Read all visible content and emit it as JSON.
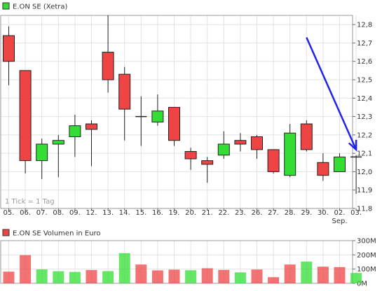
{
  "chart_data": [
    {
      "type": "candlestick",
      "legend": {
        "label": "E.ON SE (Xetra)",
        "color": "#33dd33"
      },
      "footnote": "1 Tick = 1 Tag",
      "x_labels": [
        "05.",
        "06.",
        "07.",
        "08.",
        "09.",
        "12.",
        "13.",
        "14.",
        "15.",
        "16.",
        "19.",
        "20.",
        "21.",
        "22.",
        "23.",
        "26.",
        "27.",
        "28.",
        "29.",
        "30.",
        "02.",
        "03."
      ],
      "x_sublabel": {
        "under": "02.",
        "text": "Sep."
      },
      "y_ticks": [
        12.8,
        12.7,
        12.6,
        12.5,
        12.4,
        12.3,
        12.2,
        12.1,
        12.0,
        11.9,
        11.8
      ],
      "y_tick_labels": [
        "12,8",
        "12,7",
        "12,6",
        "12,5",
        "12,4",
        "12,3",
        "12,2",
        "12,1",
        "12,0",
        "11,9",
        "11,8"
      ],
      "ylim": [
        11.8,
        12.85
      ],
      "grid": true,
      "colors": {
        "up": "#33dd33",
        "down": "#ee4444",
        "annotation": "#2222ee"
      },
      "candles": [
        {
          "open": 12.74,
          "close": 12.6,
          "high": 12.79,
          "low": 12.47
        },
        {
          "open": 12.55,
          "close": 12.06,
          "high": 12.55,
          "low": 11.99
        },
        {
          "open": 12.06,
          "close": 12.15,
          "high": 12.18,
          "low": 11.96
        },
        {
          "open": 12.15,
          "close": 12.17,
          "high": 12.2,
          "low": 11.97
        },
        {
          "open": 12.19,
          "close": 12.25,
          "high": 12.31,
          "low": 12.08
        },
        {
          "open": 12.26,
          "close": 12.23,
          "high": 12.28,
          "low": 12.03
        },
        {
          "open": 12.65,
          "close": 12.5,
          "high": 12.85,
          "low": 12.43
        },
        {
          "open": 12.53,
          "close": 12.34,
          "high": 12.57,
          "low": 12.17
        },
        {
          "open": 12.3,
          "close": 12.3,
          "high": 12.41,
          "low": 12.14
        },
        {
          "open": 12.27,
          "close": 12.33,
          "high": 12.42,
          "low": 12.25
        },
        {
          "open": 12.35,
          "close": 12.17,
          "high": 12.35,
          "low": 12.14
        },
        {
          "open": 12.11,
          "close": 12.07,
          "high": 12.13,
          "low": 12.01
        },
        {
          "open": 12.06,
          "close": 12.04,
          "high": 12.08,
          "low": 11.94
        },
        {
          "open": 12.09,
          "close": 12.15,
          "high": 12.22,
          "low": 12.07
        },
        {
          "open": 12.17,
          "close": 12.15,
          "high": 12.21,
          "low": 12.11
        },
        {
          "open": 12.19,
          "close": 12.12,
          "high": 12.2,
          "low": 12.07
        },
        {
          "open": 12.12,
          "close": 12.0,
          "high": 12.12,
          "low": 11.99
        },
        {
          "open": 11.98,
          "close": 12.21,
          "high": 12.26,
          "low": 11.97
        },
        {
          "open": 12.26,
          "close": 12.12,
          "high": 12.28,
          "low": 12.11
        },
        {
          "open": 12.05,
          "close": 11.98,
          "high": 12.1,
          "low": 11.95
        },
        {
          "open": 12.0,
          "close": 12.08,
          "high": 12.1,
          "low": 12.0
        },
        {
          "open": 12.08,
          "close": 12.08,
          "high": 12.09,
          "low": 11.88
        }
      ],
      "annotation_arrow": {
        "from": {
          "x_index": 18.0,
          "y": 12.73
        },
        "to": {
          "x_index": 21.0,
          "y": 12.12
        }
      }
    },
    {
      "type": "bar",
      "legend": {
        "label": "E.ON SE Volumen in Euro",
        "color": "#ee4444"
      },
      "y_ticks": [
        0,
        100,
        200,
        300
      ],
      "y_tick_labels": [
        "0M",
        "100M",
        "200M",
        "300M"
      ],
      "ylim": [
        0,
        300
      ],
      "unit": "M",
      "grid": true,
      "values": [
        82,
        198,
        98,
        85,
        80,
        93,
        86,
        212,
        132,
        91,
        96,
        92,
        106,
        94,
        77,
        97,
        43,
        132,
        153,
        117,
        114,
        73
      ],
      "directions": [
        "down",
        "down",
        "up",
        "up",
        "up",
        "down",
        "up",
        "up",
        "down",
        "down",
        "down",
        "up",
        "down",
        "down",
        "up",
        "down",
        "down",
        "down",
        "up",
        "down",
        "down",
        "up"
      ]
    }
  ]
}
